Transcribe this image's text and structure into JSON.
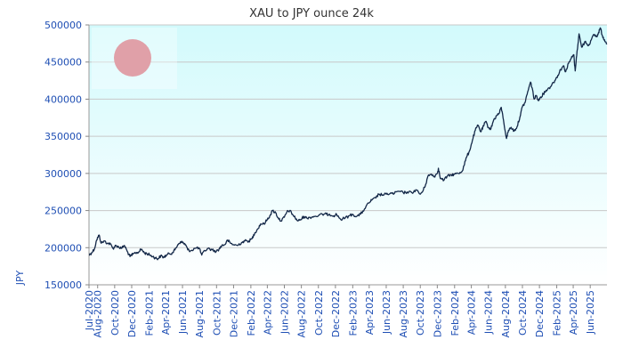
{
  "chart_data": {
    "type": "line",
    "title": "XAU to JPY ounce 24k",
    "xlabel": "",
    "ylabel": "JPY",
    "ylim": [
      150000,
      500000
    ],
    "yticks": [
      150000,
      200000,
      250000,
      300000,
      350000,
      400000,
      450000,
      500000
    ],
    "xlim": [
      "2020-07-01",
      "2025-07-31"
    ],
    "xticks": [
      {
        "date": "2020-07-01",
        "label": "Jul-2020"
      },
      {
        "date": "2020-08-01",
        "label": "Aug-2020"
      },
      {
        "date": "2020-10-01",
        "label": "Oct-2020"
      },
      {
        "date": "2020-12-01",
        "label": "Dec-2020"
      },
      {
        "date": "2021-02-01",
        "label": "Feb-2021"
      },
      {
        "date": "2021-04-01",
        "label": "Apr-2021"
      },
      {
        "date": "2021-06-01",
        "label": "Jun-2021"
      },
      {
        "date": "2021-08-01",
        "label": "Aug-2021"
      },
      {
        "date": "2021-10-01",
        "label": "Oct-2021"
      },
      {
        "date": "2021-12-01",
        "label": "Dec-2021"
      },
      {
        "date": "2022-02-01",
        "label": "Feb-2022"
      },
      {
        "date": "2022-04-01",
        "label": "Apr-2022"
      },
      {
        "date": "2022-06-01",
        "label": "Jun-2022"
      },
      {
        "date": "2022-08-01",
        "label": "Aug-2022"
      },
      {
        "date": "2022-10-01",
        "label": "Oct-2022"
      },
      {
        "date": "2022-12-01",
        "label": "Dec-2022"
      },
      {
        "date": "2023-02-01",
        "label": "Feb-2023"
      },
      {
        "date": "2023-04-01",
        "label": "Apr-2023"
      },
      {
        "date": "2023-06-01",
        "label": "Jun-2023"
      },
      {
        "date": "2023-08-01",
        "label": "Aug-2023"
      },
      {
        "date": "2023-10-01",
        "label": "Oct-2023"
      },
      {
        "date": "2023-12-01",
        "label": "Dec-2023"
      },
      {
        "date": "2024-02-01",
        "label": "Feb-2024"
      },
      {
        "date": "2024-04-01",
        "label": "Apr-2024"
      },
      {
        "date": "2024-06-01",
        "label": "Jun-2024"
      },
      {
        "date": "2024-08-01",
        "label": "Aug-2024"
      },
      {
        "date": "2024-10-01",
        "label": "Oct-2024"
      },
      {
        "date": "2024-12-01",
        "label": "Dec-2024"
      },
      {
        "date": "2025-02-01",
        "label": "Feb-2025"
      },
      {
        "date": "2025-04-01",
        "label": "Apr-2025"
      },
      {
        "date": "2025-06-01",
        "label": "Jun-2025"
      }
    ],
    "grid": "horizontal",
    "legend": "none",
    "colors": {
      "line": "#142848",
      "axis_text": "#1f4fb4",
      "title": "#333333",
      "grid": "#c8c8c8",
      "bg_top": "#d2fafc",
      "bg_bottom": "#ffffff",
      "flag_circle": "#e0a0a8"
    },
    "series": [
      {
        "points": [
          [
            "2020-07-01",
            190000
          ],
          [
            "2020-07-10",
            193000
          ],
          [
            "2020-07-20",
            198000
          ],
          [
            "2020-07-28",
            210000
          ],
          [
            "2020-08-06",
            217000
          ],
          [
            "2020-08-14",
            206000
          ],
          [
            "2020-08-25",
            209000
          ],
          [
            "2020-09-05",
            206000
          ],
          [
            "2020-09-15",
            205000
          ],
          [
            "2020-09-25",
            199000
          ],
          [
            "2020-10-05",
            203000
          ],
          [
            "2020-10-15",
            201000
          ],
          [
            "2020-10-25",
            199000
          ],
          [
            "2020-11-05",
            203000
          ],
          [
            "2020-11-15",
            195000
          ],
          [
            "2020-11-25",
            188000
          ],
          [
            "2020-12-05",
            191000
          ],
          [
            "2020-12-15",
            193000
          ],
          [
            "2020-12-25",
            194000
          ],
          [
            "2021-01-05",
            198000
          ],
          [
            "2021-01-15",
            193000
          ],
          [
            "2021-01-25",
            192000
          ],
          [
            "2021-02-05",
            190000
          ],
          [
            "2021-02-15",
            188000
          ],
          [
            "2021-02-25",
            186000
          ],
          [
            "2021-03-05",
            185000
          ],
          [
            "2021-03-15",
            189000
          ],
          [
            "2021-03-25",
            187000
          ],
          [
            "2021-04-05",
            190000
          ],
          [
            "2021-04-15",
            192000
          ],
          [
            "2021-04-25",
            193000
          ],
          [
            "2021-05-05",
            197000
          ],
          [
            "2021-05-15",
            204000
          ],
          [
            "2021-05-25",
            208000
          ],
          [
            "2021-06-05",
            206000
          ],
          [
            "2021-06-12",
            204000
          ],
          [
            "2021-06-20",
            197000
          ],
          [
            "2021-07-01",
            196000
          ],
          [
            "2021-07-15",
            199000
          ],
          [
            "2021-07-30",
            200000
          ],
          [
            "2021-08-09",
            190000
          ],
          [
            "2021-08-20",
            196000
          ],
          [
            "2021-09-01",
            199000
          ],
          [
            "2021-09-15",
            197000
          ],
          [
            "2021-09-30",
            195000
          ],
          [
            "2021-10-10",
            198000
          ],
          [
            "2021-10-20",
            203000
          ],
          [
            "2021-10-30",
            204000
          ],
          [
            "2021-11-10",
            210000
          ],
          [
            "2021-11-20",
            206000
          ],
          [
            "2021-12-01",
            204000
          ],
          [
            "2021-12-15",
            203000
          ],
          [
            "2021-12-30",
            207000
          ],
          [
            "2022-01-10",
            209000
          ],
          [
            "2022-01-25",
            209000
          ],
          [
            "2022-02-05",
            212000
          ],
          [
            "2022-02-15",
            220000
          ],
          [
            "2022-02-25",
            225000
          ],
          [
            "2022-03-08",
            232000
          ],
          [
            "2022-03-20",
            232000
          ],
          [
            "2022-04-01",
            238000
          ],
          [
            "2022-04-10",
            243000
          ],
          [
            "2022-04-20",
            250000
          ],
          [
            "2022-05-01",
            247000
          ],
          [
            "2022-05-10",
            240000
          ],
          [
            "2022-05-20",
            236000
          ],
          [
            "2022-06-01",
            241000
          ],
          [
            "2022-06-10",
            248000
          ],
          [
            "2022-06-20",
            250000
          ],
          [
            "2022-06-30",
            245000
          ],
          [
            "2022-07-10",
            240000
          ],
          [
            "2022-07-20",
            236000
          ],
          [
            "2022-07-30",
            238000
          ],
          [
            "2022-08-10",
            242000
          ],
          [
            "2022-08-20",
            240000
          ],
          [
            "2022-09-01",
            241000
          ],
          [
            "2022-09-15",
            242000
          ],
          [
            "2022-10-01",
            243000
          ],
          [
            "2022-10-15",
            245000
          ],
          [
            "2022-10-30",
            245000
          ],
          [
            "2022-11-10",
            245000
          ],
          [
            "2022-11-25",
            243000
          ],
          [
            "2022-12-05",
            245000
          ],
          [
            "2022-12-20",
            238000
          ],
          [
            "2023-01-05",
            240000
          ],
          [
            "2023-01-20",
            243000
          ],
          [
            "2023-02-01",
            245000
          ],
          [
            "2023-02-15",
            242000
          ],
          [
            "2023-03-01",
            245000
          ],
          [
            "2023-03-15",
            252000
          ],
          [
            "2023-03-30",
            260000
          ],
          [
            "2023-04-10",
            264000
          ],
          [
            "2023-04-25",
            267000
          ],
          [
            "2023-05-05",
            272000
          ],
          [
            "2023-05-20",
            271000
          ],
          [
            "2023-06-01",
            272000
          ],
          [
            "2023-06-15",
            273000
          ],
          [
            "2023-06-30",
            273000
          ],
          [
            "2023-07-15",
            276000
          ],
          [
            "2023-08-01",
            274000
          ],
          [
            "2023-08-15",
            275000
          ],
          [
            "2023-09-01",
            274000
          ],
          [
            "2023-09-15",
            278000
          ],
          [
            "2023-10-01",
            272000
          ],
          [
            "2023-10-10",
            276000
          ],
          [
            "2023-10-20",
            285000
          ],
          [
            "2023-10-28",
            296000
          ],
          [
            "2023-11-10",
            299000
          ],
          [
            "2023-11-20",
            296000
          ],
          [
            "2023-12-01",
            300000
          ],
          [
            "2023-12-05",
            307000
          ],
          [
            "2023-12-12",
            293000
          ],
          [
            "2023-12-25",
            291000
          ],
          [
            "2024-01-05",
            296000
          ],
          [
            "2024-01-20",
            298000
          ],
          [
            "2024-02-01",
            299000
          ],
          [
            "2024-02-15",
            300000
          ],
          [
            "2024-02-28",
            303000
          ],
          [
            "2024-03-05",
            310000
          ],
          [
            "2024-03-15",
            322000
          ],
          [
            "2024-03-25",
            330000
          ],
          [
            "2024-04-05",
            345000
          ],
          [
            "2024-04-15",
            358000
          ],
          [
            "2024-04-25",
            365000
          ],
          [
            "2024-05-05",
            356000
          ],
          [
            "2024-05-15",
            364000
          ],
          [
            "2024-05-22",
            370000
          ],
          [
            "2024-06-01",
            362000
          ],
          [
            "2024-06-10",
            360000
          ],
          [
            "2024-06-20",
            372000
          ],
          [
            "2024-07-01",
            378000
          ],
          [
            "2024-07-10",
            381000
          ],
          [
            "2024-07-17",
            389000
          ],
          [
            "2024-07-25",
            372000
          ],
          [
            "2024-08-05",
            347000
          ],
          [
            "2024-08-12",
            358000
          ],
          [
            "2024-08-22",
            362000
          ],
          [
            "2024-09-01",
            357000
          ],
          [
            "2024-09-12",
            363000
          ],
          [
            "2024-09-22",
            376000
          ],
          [
            "2024-10-01",
            390000
          ],
          [
            "2024-10-10",
            395000
          ],
          [
            "2024-10-20",
            410000
          ],
          [
            "2024-10-30",
            423000
          ],
          [
            "2024-11-05",
            415000
          ],
          [
            "2024-11-12",
            400000
          ],
          [
            "2024-11-20",
            405000
          ],
          [
            "2024-11-28",
            398000
          ],
          [
            "2024-12-05",
            403000
          ],
          [
            "2024-12-15",
            407000
          ],
          [
            "2024-12-25",
            412000
          ],
          [
            "2025-01-05",
            415000
          ],
          [
            "2025-01-15",
            420000
          ],
          [
            "2025-01-25",
            425000
          ],
          [
            "2025-02-05",
            432000
          ],
          [
            "2025-02-15",
            440000
          ],
          [
            "2025-02-25",
            445000
          ],
          [
            "2025-03-05",
            437000
          ],
          [
            "2025-03-15",
            448000
          ],
          [
            "2025-03-25",
            455000
          ],
          [
            "2025-04-03",
            460000
          ],
          [
            "2025-04-08",
            438000
          ],
          [
            "2025-04-15",
            465000
          ],
          [
            "2025-04-22",
            488000
          ],
          [
            "2025-05-01",
            470000
          ],
          [
            "2025-05-15",
            478000
          ],
          [
            "2025-05-25",
            472000
          ],
          [
            "2025-06-05",
            480000
          ],
          [
            "2025-06-15",
            487000
          ],
          [
            "2025-06-25",
            484000
          ],
          [
            "2025-07-01",
            490000
          ],
          [
            "2025-07-07",
            496000
          ],
          [
            "2025-07-15",
            485000
          ],
          [
            "2025-07-22",
            480000
          ],
          [
            "2025-07-31",
            475000
          ]
        ]
      }
    ]
  }
}
